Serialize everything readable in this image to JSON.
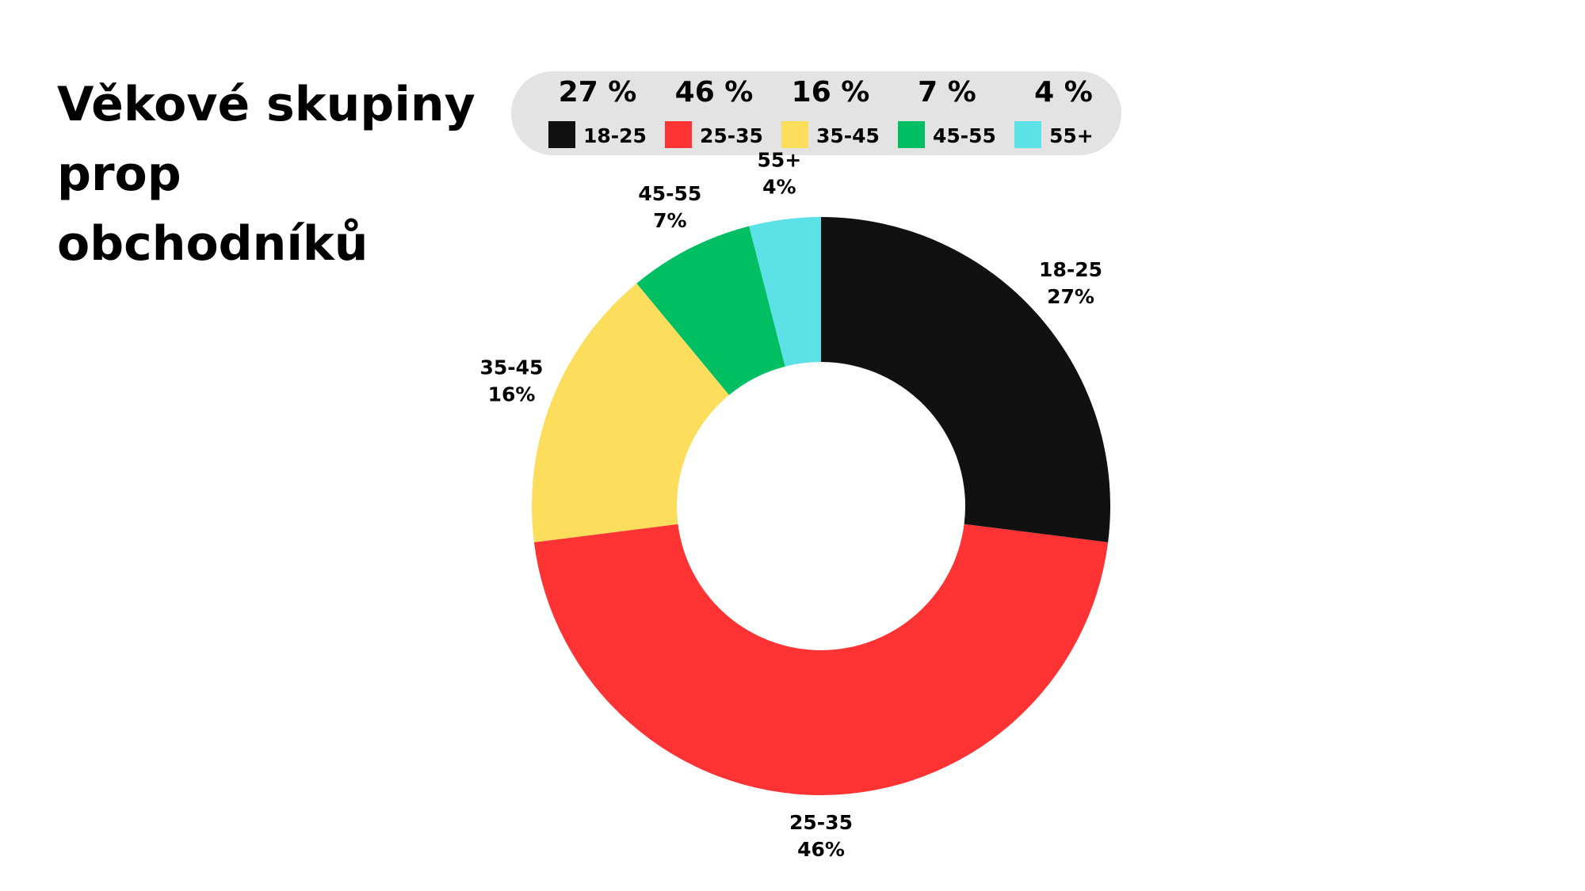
{
  "chart_data": {
    "type": "donut",
    "title": "Věkové skupiny prop obchodníků",
    "categories": [
      "18-25",
      "25-35",
      "35-45",
      "45-55",
      "55+"
    ],
    "values": [
      27,
      46,
      16,
      7,
      4
    ],
    "value_labels": [
      "27%",
      "46%",
      "16%",
      "7%",
      "4%"
    ],
    "legend_labels": [
      "27 %",
      "46 %",
      "16 %",
      "7 %",
      "4 %"
    ],
    "colors": [
      "#111111",
      "#ff3333",
      "#fddd5c",
      "#00bf63",
      "#5ce1e6"
    ]
  }
}
